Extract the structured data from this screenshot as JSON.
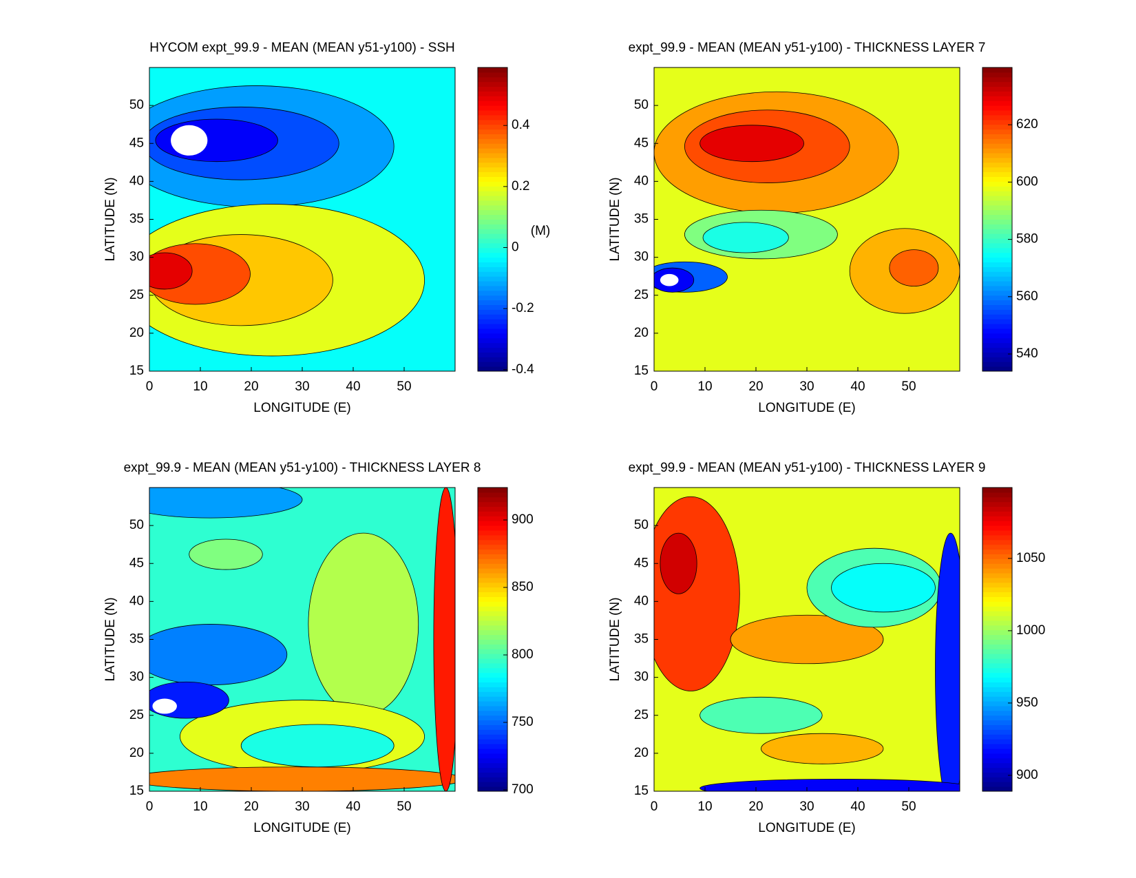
{
  "chart_data": [
    {
      "type": "contour",
      "title": "HYCOM expt_99.9 - MEAN (MEAN y51-y100) - SSH",
      "x_label": "LONGITUDE (E)",
      "y_label": "LATITUDE (N)",
      "xlim": [
        0,
        60
      ],
      "ylim": [
        15,
        55
      ],
      "xticks": [
        0,
        10,
        20,
        30,
        40,
        50
      ],
      "yticks": [
        15,
        20,
        25,
        30,
        35,
        40,
        45,
        50
      ],
      "colormap": "jet",
      "clim": [
        -0.405,
        0.59
      ],
      "cticks": [
        -0.4,
        -0.2,
        0,
        0.2,
        0.4
      ],
      "colorbar_label": "(M)"
    },
    {
      "type": "contour",
      "title": "expt_99.9 - MEAN (MEAN y51-y100) - THICKNESS LAYER 7",
      "x_label": "LONGITUDE (E)",
      "y_label": "LATITUDE (N)",
      "xlim": [
        0,
        60
      ],
      "ylim": [
        15,
        55
      ],
      "xticks": [
        0,
        10,
        20,
        30,
        40,
        50
      ],
      "yticks": [
        15,
        20,
        25,
        30,
        35,
        40,
        45,
        50
      ],
      "colormap": "jet",
      "clim": [
        534,
        640
      ],
      "cticks": [
        540,
        560,
        580,
        600,
        620
      ]
    },
    {
      "type": "contour",
      "title": "expt_99.9 - MEAN (MEAN y51-y100) - THICKNESS LAYER 8",
      "x_label": "LONGITUDE (E)",
      "y_label": "LATITUDE (N)",
      "xlim": [
        0,
        60
      ],
      "ylim": [
        15,
        55
      ],
      "xticks": [
        0,
        10,
        20,
        30,
        40,
        50
      ],
      "yticks": [
        15,
        20,
        25,
        30,
        35,
        40,
        45,
        50
      ],
      "colormap": "jet",
      "clim": [
        699,
        924
      ],
      "cticks": [
        700,
        750,
        800,
        850,
        900
      ]
    },
    {
      "type": "contour",
      "title": "expt_99.9 - MEAN (MEAN y51-y100) - THICKNESS LAYER 9",
      "x_label": "LONGITUDE (E)",
      "y_label": "LATITUDE (N)",
      "xlim": [
        0,
        60
      ],
      "ylim": [
        15,
        55
      ],
      "xticks": [
        0,
        10,
        20,
        30,
        40,
        50
      ],
      "yticks": [
        15,
        20,
        25,
        30,
        35,
        40,
        45,
        50
      ],
      "colormap": "jet",
      "clim": [
        889,
        1099
      ],
      "cticks": [
        900,
        950,
        1000,
        1050
      ]
    }
  ]
}
